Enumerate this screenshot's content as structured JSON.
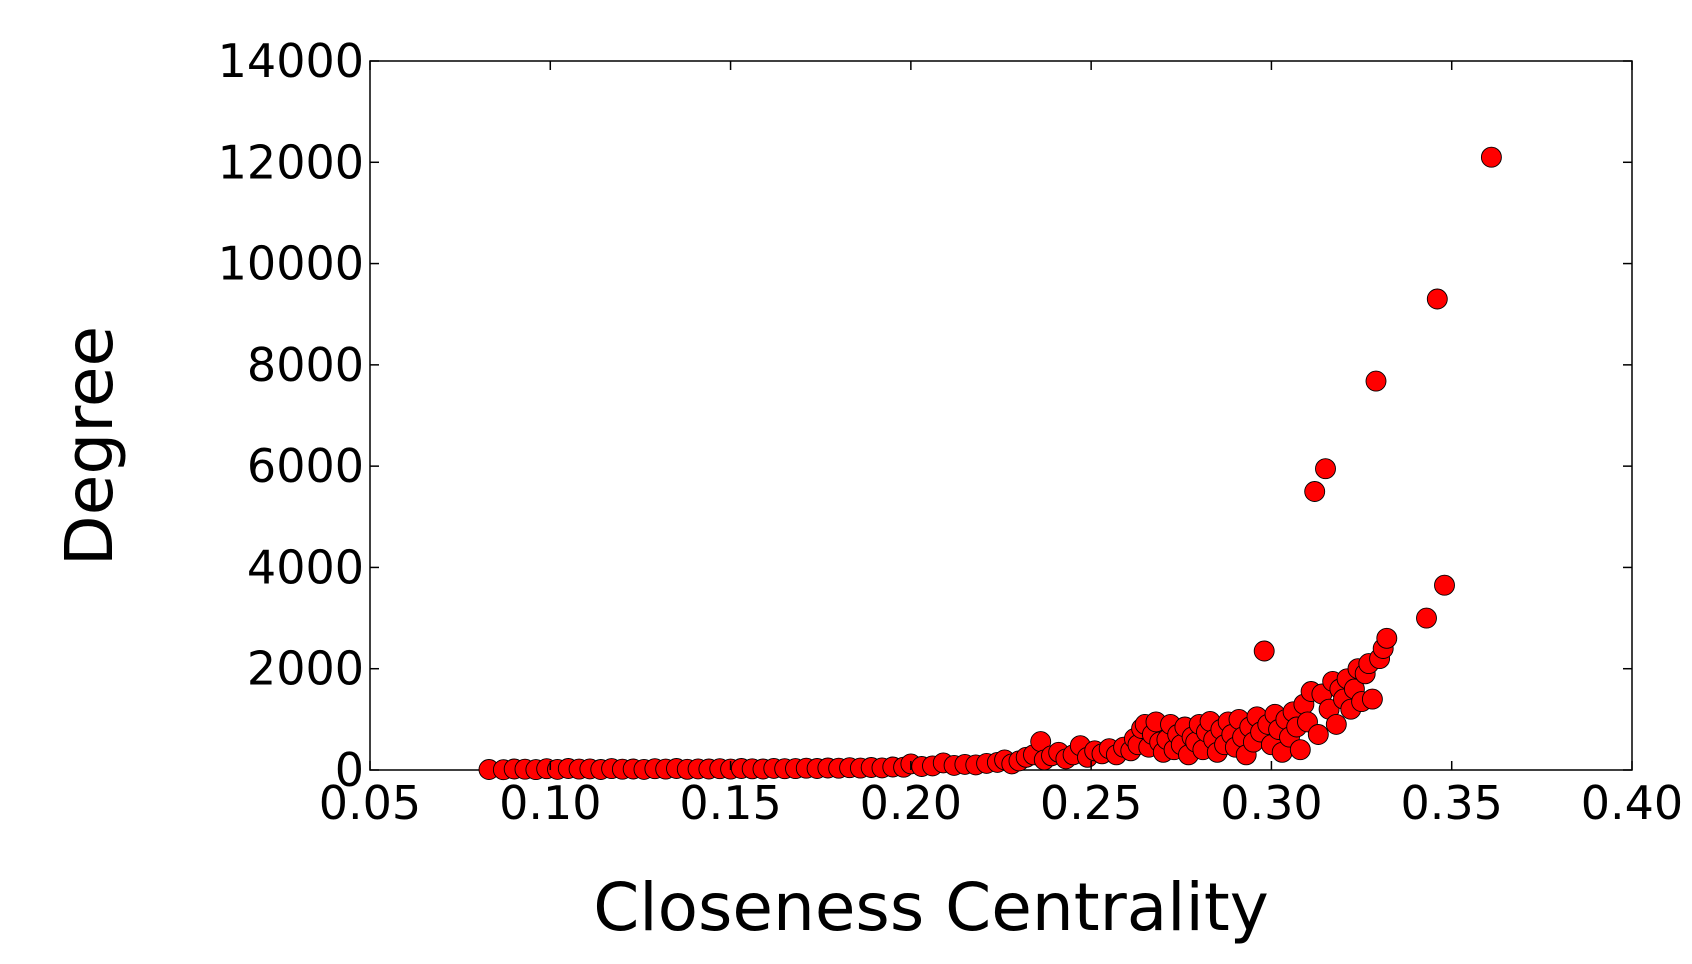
{
  "chart_data": {
    "type": "scatter",
    "title": "",
    "xlabel": "Closeness Centrality",
    "ylabel": "Degree",
    "xlim": [
      0.05,
      0.4
    ],
    "ylim": [
      0,
      14000
    ],
    "xticks": [
      "0.05",
      "0.10",
      "0.15",
      "0.20",
      "0.25",
      "0.30",
      "0.35",
      "0.40"
    ],
    "yticks": [
      "0",
      "2000",
      "4000",
      "6000",
      "8000",
      "10000",
      "12000",
      "14000"
    ],
    "grid": false,
    "legend": "none",
    "marker_color": "#ff0000",
    "marker_edge_color": "#000000",
    "series": [
      {
        "points": [
          [
            0.083,
            10
          ],
          [
            0.087,
            5
          ],
          [
            0.09,
            20
          ],
          [
            0.093,
            15
          ],
          [
            0.096,
            8
          ],
          [
            0.099,
            25
          ],
          [
            0.102,
            12
          ],
          [
            0.105,
            30
          ],
          [
            0.108,
            18
          ],
          [
            0.111,
            22
          ],
          [
            0.114,
            10
          ],
          [
            0.117,
            28
          ],
          [
            0.12,
            15
          ],
          [
            0.123,
            20
          ],
          [
            0.126,
            12
          ],
          [
            0.129,
            25
          ],
          [
            0.132,
            18
          ],
          [
            0.135,
            30
          ],
          [
            0.138,
            14
          ],
          [
            0.141,
            22
          ],
          [
            0.144,
            20
          ],
          [
            0.147,
            26
          ],
          [
            0.15,
            18
          ],
          [
            0.153,
            30
          ],
          [
            0.156,
            24
          ],
          [
            0.159,
            20
          ],
          [
            0.162,
            32
          ],
          [
            0.165,
            25
          ],
          [
            0.168,
            28
          ],
          [
            0.171,
            35
          ],
          [
            0.174,
            30
          ],
          [
            0.177,
            40
          ],
          [
            0.18,
            35
          ],
          [
            0.183,
            45
          ],
          [
            0.186,
            38
          ],
          [
            0.189,
            50
          ],
          [
            0.192,
            42
          ],
          [
            0.195,
            60
          ],
          [
            0.198,
            55
          ],
          [
            0.2,
            120
          ],
          [
            0.203,
            70
          ],
          [
            0.206,
            80
          ],
          [
            0.209,
            140
          ],
          [
            0.212,
            90
          ],
          [
            0.215,
            110
          ],
          [
            0.218,
            100
          ],
          [
            0.221,
            130
          ],
          [
            0.224,
            150
          ],
          [
            0.226,
            200
          ],
          [
            0.228,
            120
          ],
          [
            0.23,
            180
          ],
          [
            0.232,
            250
          ],
          [
            0.234,
            300
          ],
          [
            0.236,
            560
          ],
          [
            0.237,
            200
          ],
          [
            0.239,
            280
          ],
          [
            0.241,
            350
          ],
          [
            0.243,
            220
          ],
          [
            0.245,
            300
          ],
          [
            0.247,
            480
          ],
          [
            0.249,
            250
          ],
          [
            0.251,
            380
          ],
          [
            0.253,
            320
          ],
          [
            0.255,
            420
          ],
          [
            0.257,
            300
          ],
          [
            0.259,
            450
          ],
          [
            0.261,
            380
          ],
          [
            0.262,
            620
          ],
          [
            0.263,
            500
          ],
          [
            0.264,
            820
          ],
          [
            0.265,
            900
          ],
          [
            0.266,
            450
          ],
          [
            0.267,
            700
          ],
          [
            0.268,
            950
          ],
          [
            0.269,
            550
          ],
          [
            0.27,
            350
          ],
          [
            0.271,
            600
          ],
          [
            0.272,
            900
          ],
          [
            0.273,
            400
          ],
          [
            0.274,
            700
          ],
          [
            0.275,
            500
          ],
          [
            0.276,
            850
          ],
          [
            0.277,
            300
          ],
          [
            0.278,
            650
          ],
          [
            0.279,
            550
          ],
          [
            0.28,
            900
          ],
          [
            0.281,
            400
          ],
          [
            0.282,
            750
          ],
          [
            0.283,
            960
          ],
          [
            0.284,
            600
          ],
          [
            0.285,
            350
          ],
          [
            0.286,
            800
          ],
          [
            0.287,
            500
          ],
          [
            0.288,
            950
          ],
          [
            0.289,
            700
          ],
          [
            0.29,
            450
          ],
          [
            0.291,
            1000
          ],
          [
            0.292,
            650
          ],
          [
            0.293,
            300
          ],
          [
            0.294,
            850
          ],
          [
            0.295,
            550
          ],
          [
            0.296,
            1050
          ],
          [
            0.297,
            750
          ],
          [
            0.298,
            2350
          ],
          [
            0.299,
            900
          ],
          [
            0.3,
            500
          ],
          [
            0.301,
            1100
          ],
          [
            0.302,
            800
          ],
          [
            0.303,
            350
          ],
          [
            0.304,
            1000
          ],
          [
            0.305,
            650
          ],
          [
            0.306,
            1150
          ],
          [
            0.307,
            850
          ],
          [
            0.308,
            400
          ],
          [
            0.309,
            1300
          ],
          [
            0.31,
            950
          ],
          [
            0.311,
            1550
          ],
          [
            0.312,
            5500
          ],
          [
            0.313,
            700
          ],
          [
            0.314,
            1500
          ],
          [
            0.315,
            5950
          ],
          [
            0.316,
            1200
          ],
          [
            0.317,
            1750
          ],
          [
            0.318,
            900
          ],
          [
            0.319,
            1600
          ],
          [
            0.32,
            1400
          ],
          [
            0.321,
            1800
          ],
          [
            0.322,
            1200
          ],
          [
            0.323,
            1600
          ],
          [
            0.324,
            2000
          ],
          [
            0.325,
            1350
          ],
          [
            0.326,
            1900
          ],
          [
            0.327,
            2100
          ],
          [
            0.328,
            1400
          ],
          [
            0.329,
            7680
          ],
          [
            0.33,
            2200
          ],
          [
            0.331,
            2400
          ],
          [
            0.332,
            2600
          ],
          [
            0.343,
            3000
          ],
          [
            0.346,
            9300
          ],
          [
            0.348,
            3650
          ],
          [
            0.361,
            12100
          ]
        ]
      }
    ]
  }
}
